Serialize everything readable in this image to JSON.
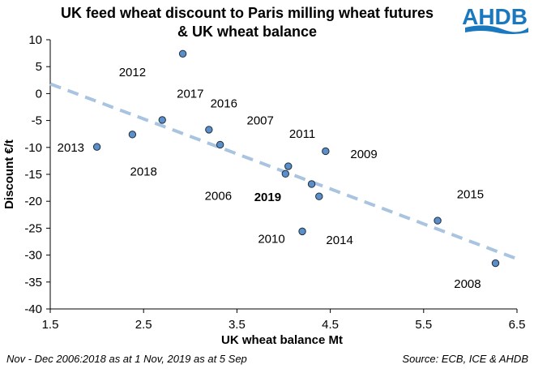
{
  "chart_data": {
    "type": "scatter",
    "title_lines": [
      "UK feed wheat discount to Paris milling wheat futures",
      "& UK wheat balance"
    ],
    "xlabel": "UK wheat balance Mt",
    "ylabel": "Discount €/t",
    "xlim": [
      1.5,
      6.5
    ],
    "ylim": [
      -40,
      10
    ],
    "x_ticks": [
      "1.5",
      "2.5",
      "3.5",
      "4.5",
      "5.5",
      "6.5"
    ],
    "y_ticks": [
      "10",
      "5",
      "0",
      "-5",
      "-10",
      "-15",
      "-20",
      "-25",
      "-30",
      "-35",
      "-40"
    ],
    "x_tick_values": [
      1.5,
      2.5,
      3.5,
      4.5,
      5.5,
      6.5
    ],
    "y_tick_values": [
      10,
      5,
      0,
      -5,
      -10,
      -15,
      -20,
      -25,
      -30,
      -35,
      -40
    ],
    "points": [
      {
        "x": 2.92,
        "y": 7.4
      },
      {
        "x": 2.0,
        "y": -9.9
      },
      {
        "x": 2.38,
        "y": -7.6
      },
      {
        "x": 2.7,
        "y": -4.9
      },
      {
        "x": 3.2,
        "y": -6.7
      },
      {
        "x": 3.32,
        "y": -9.5
      },
      {
        "x": 4.02,
        "y": -14.9
      },
      {
        "x": 4.05,
        "y": -13.5
      },
      {
        "x": 4.3,
        "y": -16.8
      },
      {
        "x": 4.38,
        "y": -19.1
      },
      {
        "x": 4.45,
        "y": -10.7
      },
      {
        "x": 4.2,
        "y": -25.6
      },
      {
        "x": 5.65,
        "y": -23.6
      },
      {
        "x": 6.27,
        "y": -31.5
      }
    ],
    "point_labels": [
      {
        "text": "2012",
        "x": 2.38,
        "y": 4.0,
        "bold": false
      },
      {
        "text": "2017",
        "x": 3.0,
        "y": 0.0,
        "bold": false
      },
      {
        "text": "2016",
        "x": 3.36,
        "y": -1.8,
        "bold": false
      },
      {
        "text": "2007",
        "x": 3.75,
        "y": -5.0,
        "bold": false
      },
      {
        "text": "2011",
        "x": 4.2,
        "y": -7.5,
        "bold": false
      },
      {
        "text": "2013",
        "x": 1.72,
        "y": -10.0,
        "bold": false
      },
      {
        "text": "2009",
        "x": 4.86,
        "y": -11.2,
        "bold": false
      },
      {
        "text": "2018",
        "x": 2.5,
        "y": -14.5,
        "bold": false
      },
      {
        "text": "2006",
        "x": 3.3,
        "y": -19.0,
        "bold": false
      },
      {
        "text": "2019",
        "x": 3.83,
        "y": -19.2,
        "bold": true
      },
      {
        "text": "2015",
        "x": 6.0,
        "y": -18.7,
        "bold": false
      },
      {
        "text": "2010",
        "x": 3.87,
        "y": -27.0,
        "bold": false
      },
      {
        "text": "2014",
        "x": 4.6,
        "y": -27.2,
        "bold": false
      },
      {
        "text": "2008",
        "x": 5.97,
        "y": -35.3,
        "bold": false
      }
    ],
    "trendline": {
      "x": [
        1.5,
        6.5
      ],
      "y": [
        1.8,
        -30.7
      ]
    },
    "colors": {
      "point_fill": "#5b8fc9",
      "point_stroke": "#1f2d3d",
      "trendline": "#a9c4e0",
      "axis": "#000000"
    }
  },
  "logo": {
    "text": "AHDB",
    "color": "#1a78be"
  },
  "footnote_left": "Nov - Dec 2006:2018 as at 1 Nov, 2019 as at 5 Sep",
  "footnote_right": "Source: ECB, ICE & AHDB"
}
